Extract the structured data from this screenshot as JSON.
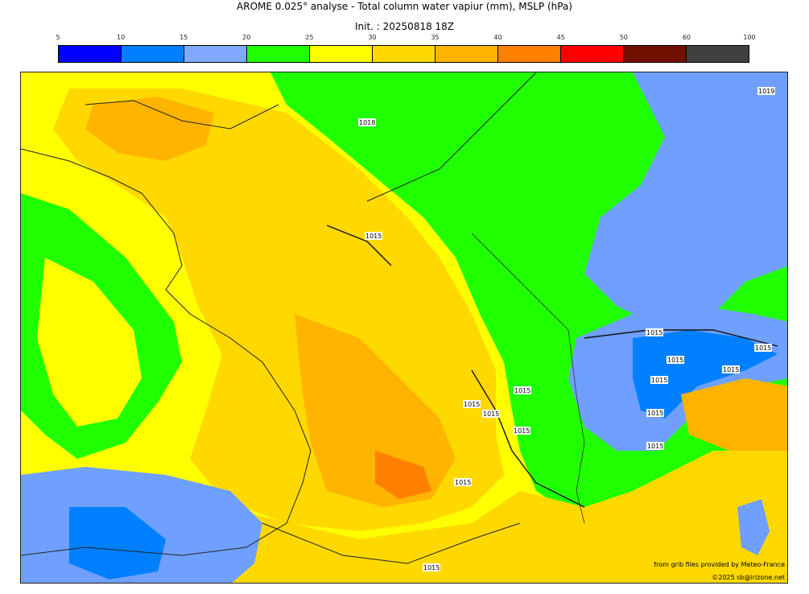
{
  "title": "AROME 0.025° analyse - Total column water vapiur (mm), MSLP (hPa)",
  "init": "Init. : 20250818 18Z",
  "colorbar": {
    "ticks": [
      "5",
      "10",
      "15",
      "20",
      "25",
      "30",
      "35",
      "40",
      "45",
      "50",
      "60",
      "100"
    ],
    "colors": [
      "#0000ff",
      "#0080ff",
      "#80a8ff",
      "#20ff00",
      "#ffff00",
      "#ffd800",
      "#ffb400",
      "#ff8000",
      "#ff0000",
      "#701000",
      "#404040"
    ]
  },
  "map_colors": {
    "band_10_15": "#0080ff",
    "band_15_20": "#6fa0ff",
    "band_20_25": "#20ff00",
    "band_25_30": "#ffff00",
    "band_30_35": "#ffd800",
    "band_35_40": "#ffb400",
    "band_40_45": "#ff8000"
  },
  "isobars": [
    "1015",
    "1015",
    "1015",
    "1015",
    "1015",
    "1015",
    "1015",
    "1015",
    "1015",
    "1015",
    "1015",
    "1015",
    "1015",
    "1015",
    "1018",
    "1019"
  ],
  "credits": {
    "source": "from grib files provided by Meteo-France",
    "copyright": "©2025 sb@irizone.net"
  }
}
